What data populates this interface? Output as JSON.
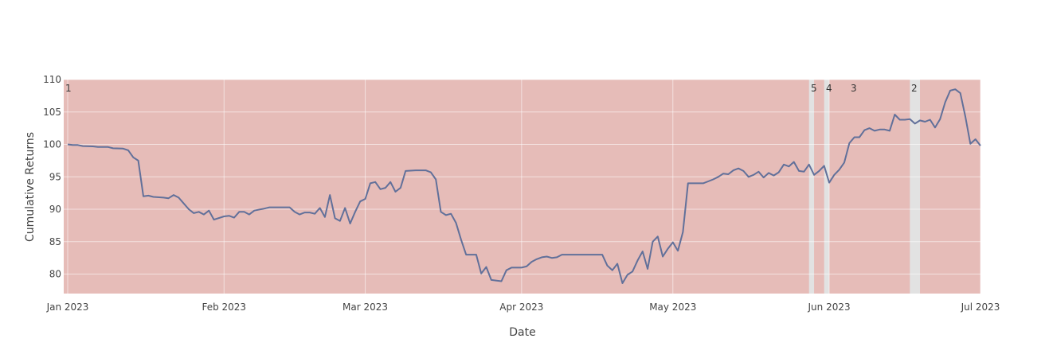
{
  "chart_data": {
    "type": "line",
    "title": "",
    "xlabel": "Date",
    "ylabel": "Cumulative Returns",
    "xlim": [
      "2023-01-01",
      "2023-07-01"
    ],
    "ylim": [
      77,
      110
    ],
    "grid": true,
    "x_ticks": [
      "2023-01-01",
      "2023-02-01",
      "2023-03-01",
      "2023-04-01",
      "2023-05-01",
      "2023-06-01",
      "2023-07-01"
    ],
    "x_tick_labels": [
      "Jan 2023",
      "Feb 2023",
      "Mar 2023",
      "Apr 2023",
      "May 2023",
      "Jun 2023",
      "Jul 2023"
    ],
    "y_ticks": [
      80,
      85,
      90,
      95,
      100,
      105,
      110
    ],
    "y_tick_labels": [
      "80",
      "85",
      "90",
      "95",
      "100",
      "105",
      "110"
    ],
    "colors": {
      "line": "#61709a",
      "drawdown": "#e6bcb8",
      "gap": "#e2e2e2",
      "background": "#ffffff"
    },
    "drawdown_periods": [
      {
        "label": "1",
        "start": "2023-01-01",
        "end": "2023-05-28"
      },
      {
        "label": "5",
        "start": "2023-05-29",
        "end": "2023-05-31"
      },
      {
        "label": "4",
        "start": "2023-06-01",
        "end": "2023-06-17"
      },
      {
        "label": "3",
        "start": "2023-06-01",
        "end": "2023-06-17"
      },
      {
        "label": "2",
        "start": "2023-06-19",
        "end": "2023-07-01"
      }
    ],
    "series": [
      {
        "points": [
          [
            "2023-01-01",
            100.0
          ],
          [
            "2023-01-02",
            99.9
          ],
          [
            "2023-01-03",
            99.9
          ],
          [
            "2023-01-04",
            99.75
          ],
          [
            "2023-01-06",
            99.7
          ],
          [
            "2023-01-07",
            99.6
          ],
          [
            "2023-01-09",
            99.6
          ],
          [
            "2023-01-10",
            99.4
          ],
          [
            "2023-01-12",
            99.35
          ],
          [
            "2023-01-13",
            99.1
          ],
          [
            "2023-01-14",
            98.0
          ],
          [
            "2023-01-15",
            97.5
          ],
          [
            "2023-01-16",
            92.0
          ],
          [
            "2023-01-17",
            92.1
          ],
          [
            "2023-01-18",
            91.9
          ],
          [
            "2023-01-20",
            91.8
          ],
          [
            "2023-01-21",
            91.7
          ],
          [
            "2023-01-22",
            92.2
          ],
          [
            "2023-01-23",
            91.8
          ],
          [
            "2023-01-25",
            90.0
          ],
          [
            "2023-01-26",
            89.4
          ],
          [
            "2023-01-27",
            89.6
          ],
          [
            "2023-01-28",
            89.2
          ],
          [
            "2023-01-29",
            89.8
          ],
          [
            "2023-01-30",
            88.4
          ],
          [
            "2023-02-01",
            88.9
          ],
          [
            "2023-02-02",
            89.0
          ],
          [
            "2023-02-03",
            88.7
          ],
          [
            "2023-02-04",
            89.6
          ],
          [
            "2023-02-05",
            89.6
          ],
          [
            "2023-02-06",
            89.2
          ],
          [
            "2023-02-07",
            89.8
          ],
          [
            "2023-02-09",
            90.1
          ],
          [
            "2023-02-10",
            90.3
          ],
          [
            "2023-02-12",
            90.3
          ],
          [
            "2023-02-14",
            90.3
          ],
          [
            "2023-02-15",
            89.6
          ],
          [
            "2023-02-16",
            89.2
          ],
          [
            "2023-02-17",
            89.5
          ],
          [
            "2023-02-18",
            89.5
          ],
          [
            "2023-02-19",
            89.3
          ],
          [
            "2023-02-20",
            90.2
          ],
          [
            "2023-02-21",
            88.8
          ],
          [
            "2023-02-22",
            92.2
          ],
          [
            "2023-02-23",
            88.6
          ],
          [
            "2023-02-24",
            88.2
          ],
          [
            "2023-02-25",
            90.2
          ],
          [
            "2023-02-26",
            87.8
          ],
          [
            "2023-02-27",
            89.6
          ],
          [
            "2023-02-28",
            91.2
          ],
          [
            "2023-03-01",
            91.6
          ],
          [
            "2023-03-02",
            94.0
          ],
          [
            "2023-03-03",
            94.2
          ],
          [
            "2023-03-04",
            93.1
          ],
          [
            "2023-03-05",
            93.3
          ],
          [
            "2023-03-06",
            94.2
          ],
          [
            "2023-03-07",
            92.7
          ],
          [
            "2023-03-08",
            93.3
          ],
          [
            "2023-03-09",
            95.9
          ],
          [
            "2023-03-11",
            96.0
          ],
          [
            "2023-03-13",
            96.0
          ],
          [
            "2023-03-14",
            95.7
          ],
          [
            "2023-03-15",
            94.6
          ],
          [
            "2023-03-16",
            89.6
          ],
          [
            "2023-03-17",
            89.1
          ],
          [
            "2023-03-18",
            89.3
          ],
          [
            "2023-03-19",
            87.9
          ],
          [
            "2023-03-20",
            85.3
          ],
          [
            "2023-03-21",
            83.0
          ],
          [
            "2023-03-23",
            83.0
          ],
          [
            "2023-03-24",
            80.1
          ],
          [
            "2023-03-25",
            81.1
          ],
          [
            "2023-03-26",
            79.1
          ],
          [
            "2023-03-28",
            78.9
          ],
          [
            "2023-03-29",
            80.6
          ],
          [
            "2023-03-30",
            81.0
          ],
          [
            "2023-04-01",
            81.0
          ],
          [
            "2023-04-02",
            81.2
          ],
          [
            "2023-04-03",
            81.9
          ],
          [
            "2023-04-04",
            82.3
          ],
          [
            "2023-04-05",
            82.6
          ],
          [
            "2023-04-06",
            82.7
          ],
          [
            "2023-04-07",
            82.5
          ],
          [
            "2023-04-08",
            82.6
          ],
          [
            "2023-04-09",
            83.0
          ],
          [
            "2023-04-13",
            83.0
          ],
          [
            "2023-04-17",
            83.0
          ],
          [
            "2023-04-18",
            81.3
          ],
          [
            "2023-04-19",
            80.6
          ],
          [
            "2023-04-20",
            81.6
          ],
          [
            "2023-04-21",
            78.6
          ],
          [
            "2023-04-22",
            79.9
          ],
          [
            "2023-04-23",
            80.4
          ],
          [
            "2023-04-24",
            82.1
          ],
          [
            "2023-04-25",
            83.5
          ],
          [
            "2023-04-26",
            80.8
          ],
          [
            "2023-04-27",
            85.0
          ],
          [
            "2023-04-28",
            85.8
          ],
          [
            "2023-04-29",
            82.7
          ],
          [
            "2023-04-30",
            83.9
          ],
          [
            "2023-05-01",
            84.9
          ],
          [
            "2023-05-02",
            83.6
          ],
          [
            "2023-05-03",
            86.5
          ],
          [
            "2023-05-04",
            94.0
          ],
          [
            "2023-05-07",
            94.0
          ],
          [
            "2023-05-08",
            94.3
          ],
          [
            "2023-05-09",
            94.6
          ],
          [
            "2023-05-10",
            95.0
          ],
          [
            "2023-05-11",
            95.5
          ],
          [
            "2023-05-12",
            95.4
          ],
          [
            "2023-05-13",
            96.0
          ],
          [
            "2023-05-14",
            96.3
          ],
          [
            "2023-05-15",
            95.9
          ],
          [
            "2023-05-16",
            95.0
          ],
          [
            "2023-05-17",
            95.3
          ],
          [
            "2023-05-18",
            95.8
          ],
          [
            "2023-05-19",
            94.9
          ],
          [
            "2023-05-20",
            95.6
          ],
          [
            "2023-05-21",
            95.2
          ],
          [
            "2023-05-22",
            95.7
          ],
          [
            "2023-05-23",
            96.9
          ],
          [
            "2023-05-24",
            96.6
          ],
          [
            "2023-05-25",
            97.3
          ],
          [
            "2023-05-26",
            95.9
          ],
          [
            "2023-05-27",
            95.8
          ],
          [
            "2023-05-28",
            96.9
          ],
          [
            "2023-05-29",
            95.3
          ],
          [
            "2023-05-30",
            95.9
          ],
          [
            "2023-05-31",
            96.7
          ],
          [
            "2023-06-01",
            94.1
          ],
          [
            "2023-06-02",
            95.3
          ],
          [
            "2023-06-03",
            96.1
          ],
          [
            "2023-06-04",
            97.2
          ],
          [
            "2023-06-05",
            100.2
          ],
          [
            "2023-06-06",
            101.1
          ],
          [
            "2023-06-07",
            101.1
          ],
          [
            "2023-06-08",
            102.2
          ],
          [
            "2023-06-09",
            102.5
          ],
          [
            "2023-06-10",
            102.1
          ],
          [
            "2023-06-11",
            102.3
          ],
          [
            "2023-06-12",
            102.3
          ],
          [
            "2023-06-13",
            102.1
          ],
          [
            "2023-06-14",
            104.6
          ],
          [
            "2023-06-15",
            103.8
          ],
          [
            "2023-06-16",
            103.8
          ],
          [
            "2023-06-17",
            103.9
          ],
          [
            "2023-06-18",
            103.2
          ],
          [
            "2023-06-19",
            103.7
          ],
          [
            "2023-06-20",
            103.5
          ],
          [
            "2023-06-21",
            103.8
          ],
          [
            "2023-06-22",
            102.6
          ],
          [
            "2023-06-23",
            103.9
          ],
          [
            "2023-06-24",
            106.5
          ],
          [
            "2023-06-25",
            108.3
          ],
          [
            "2023-06-26",
            108.5
          ],
          [
            "2023-06-27",
            107.9
          ],
          [
            "2023-06-28",
            104.3
          ],
          [
            "2023-06-29",
            100.1
          ],
          [
            "2023-06-30",
            100.8
          ],
          [
            "2023-07-01",
            99.8
          ]
        ]
      }
    ]
  }
}
